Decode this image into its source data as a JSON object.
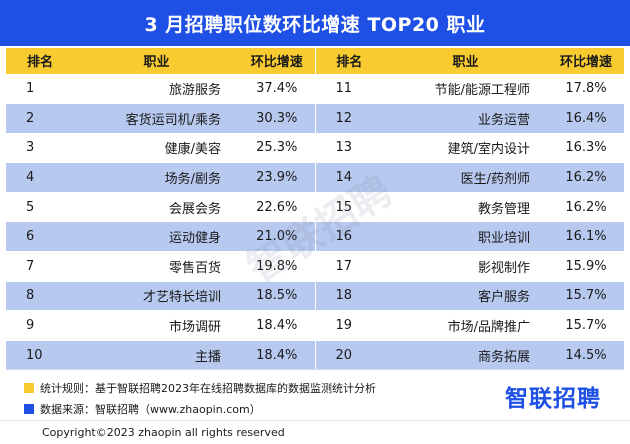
{
  "title": "3 月招聘职位数环比增速 TOP20 职业",
  "headers": {
    "rank": "排名",
    "job": "职业",
    "growth": "环比增速"
  },
  "rows": [
    {
      "left": {
        "rank": "1",
        "job": "旅游服务",
        "growth": "37.4%"
      },
      "right": {
        "rank": "11",
        "job": "节能/能源工程师",
        "growth": "17.8%"
      }
    },
    {
      "left": {
        "rank": "2",
        "job": "客货运司机/乘务",
        "growth": "30.3%"
      },
      "right": {
        "rank": "12",
        "job": "业务运营",
        "growth": "16.4%"
      }
    },
    {
      "left": {
        "rank": "3",
        "job": "健康/美容",
        "growth": "25.3%"
      },
      "right": {
        "rank": "13",
        "job": "建筑/室内设计",
        "growth": "16.3%"
      }
    },
    {
      "left": {
        "rank": "4",
        "job": "场务/剧务",
        "growth": "23.9%"
      },
      "right": {
        "rank": "14",
        "job": "医生/药剂师",
        "growth": "16.2%"
      }
    },
    {
      "left": {
        "rank": "5",
        "job": "会展会务",
        "growth": "22.6%"
      },
      "right": {
        "rank": "15",
        "job": "教务管理",
        "growth": "16.2%"
      }
    },
    {
      "left": {
        "rank": "6",
        "job": "运动健身",
        "growth": "21.0%"
      },
      "right": {
        "rank": "16",
        "job": "职业培训",
        "growth": "16.1%"
      }
    },
    {
      "left": {
        "rank": "7",
        "job": "零售百货",
        "growth": "19.8%"
      },
      "right": {
        "rank": "17",
        "job": "影视制作",
        "growth": "15.9%"
      }
    },
    {
      "left": {
        "rank": "8",
        "job": "才艺特长培训",
        "growth": "18.5%"
      },
      "right": {
        "rank": "18",
        "job": "客户服务",
        "growth": "15.7%"
      }
    },
    {
      "left": {
        "rank": "9",
        "job": "市场调研",
        "growth": "18.4%"
      },
      "right": {
        "rank": "19",
        "job": "市场/品牌推广",
        "growth": "15.7%"
      }
    },
    {
      "left": {
        "rank": "10",
        "job": "主播",
        "growth": "18.4%"
      },
      "right": {
        "rank": "20",
        "job": "商务拓展",
        "growth": "14.5%"
      }
    }
  ],
  "watermark": "智联招聘",
  "legend": {
    "rule": "统计规则：基于智联招聘2023年在线招聘数据库的数据监测统计分析",
    "source": "数据来源：智联招聘（www.zhaopin.com）"
  },
  "brand": "智联招聘",
  "copyright": "Copyright©2023 zhaopin all rights reserved",
  "colors": {
    "title_bg": "#1e50e6",
    "header_bg": "#f8cc30",
    "stripe": "#b7c9ef"
  }
}
